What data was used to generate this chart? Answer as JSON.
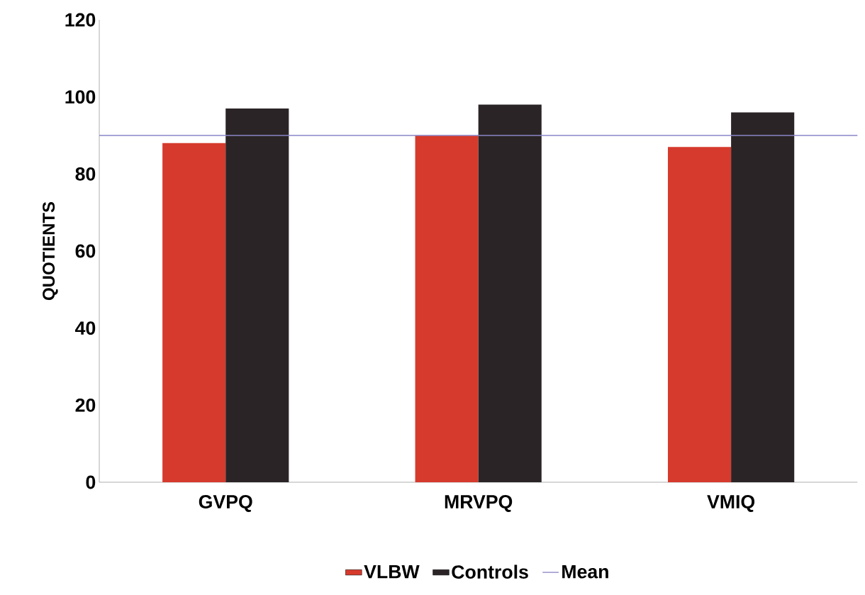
{
  "chart_data": {
    "type": "bar",
    "ylabel": "QUOTIENTS",
    "categories": [
      "GVPQ",
      "MRVPQ",
      "VMIQ"
    ],
    "series": [
      {
        "name": "VLBW",
        "color": "#d63a2c",
        "values": [
          88,
          90,
          87
        ]
      },
      {
        "name": "Controls",
        "color": "#2b2426",
        "values": [
          97,
          98,
          96
        ]
      }
    ],
    "ylim": [
      0,
      120
    ],
    "yticks": [
      0,
      20,
      40,
      60,
      80,
      100,
      120
    ],
    "ref_lines": [
      {
        "axis": "y",
        "value": 90,
        "label": "Mean",
        "color": "#8a86c8"
      }
    ],
    "legend": "bottom"
  }
}
